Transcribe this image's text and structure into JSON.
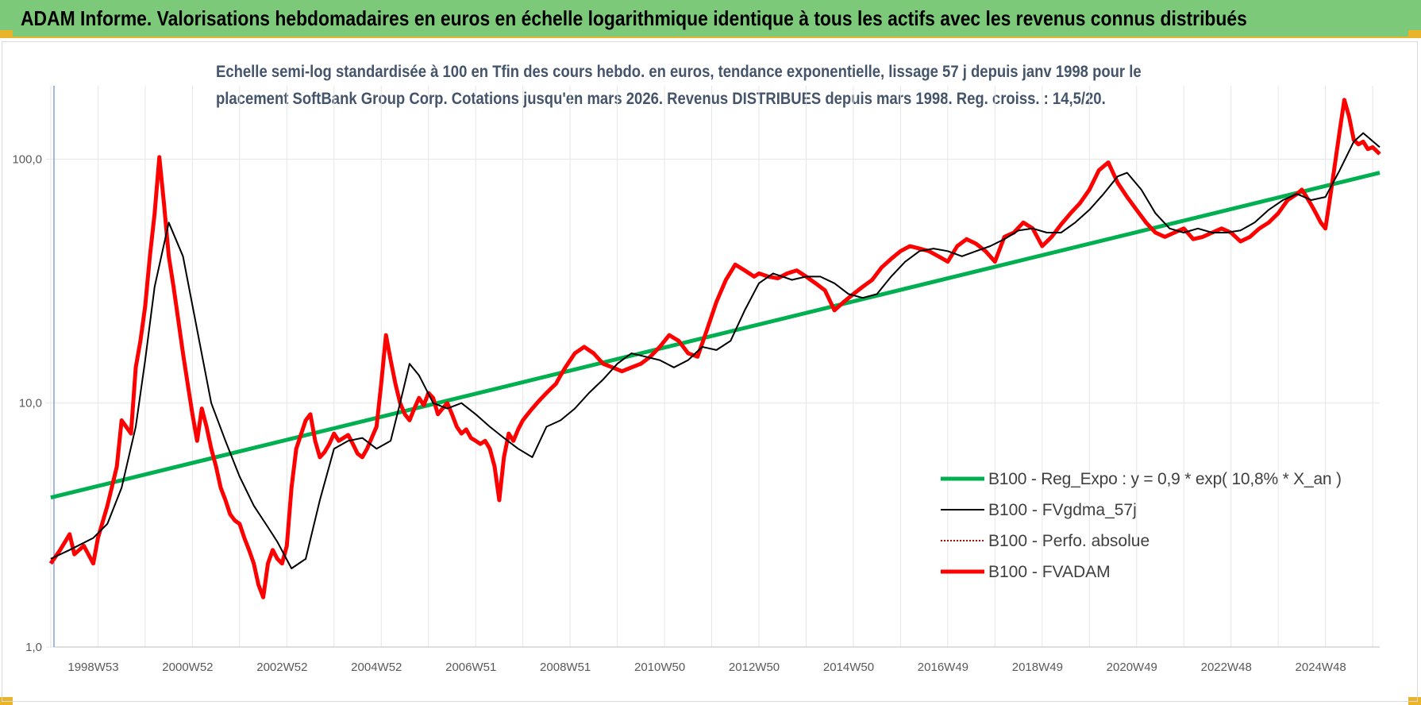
{
  "banner": {
    "title": "ADAM Informe. Valorisations hebdomadaires en euros en échelle logarithmique identique à tous les actifs avec les revenus connus distribués"
  },
  "colors": {
    "banner_bg": "#7cc97a",
    "accent": "#e9b32a",
    "regression": "#00b050",
    "smoothed": "#000000",
    "perfo": "#c00000",
    "fvadam": "#ff0000"
  },
  "chart_data": {
    "type": "line",
    "title_lines": [
      "Echelle semi-log standardisée à 100 en Tfin des cours hebdo. en euros, tendance exponentielle, lissage 57 j depuis janv 1998 pour le",
      "placement SoftBank Group Corp. Cotations jusqu'en mars 2026. Revenus DISTRIBUES depuis mars 1998. Reg. croiss. : 14,5/20."
    ],
    "y_scale": "log",
    "ylim": [
      1,
      200
    ],
    "y_ticks": [
      {
        "value": 1,
        "label": "1,0"
      },
      {
        "value": 10,
        "label": "10,0"
      },
      {
        "value": 100,
        "label": "100,0"
      }
    ],
    "xlim": [
      1998.0,
      2026.25
    ],
    "x_ticks": [
      {
        "value": 1999.0,
        "label": "1998W53"
      },
      {
        "value": 2001.0,
        "label": "2000W52"
      },
      {
        "value": 2003.0,
        "label": "2002W52"
      },
      {
        "value": 2005.0,
        "label": "2004W52"
      },
      {
        "value": 2007.0,
        "label": "2006W51"
      },
      {
        "value": 2009.0,
        "label": "2008W51"
      },
      {
        "value": 2011.0,
        "label": "2010W50"
      },
      {
        "value": 2013.0,
        "label": "2012W50"
      },
      {
        "value": 2015.0,
        "label": "2014W50"
      },
      {
        "value": 2017.0,
        "label": "2016W49"
      },
      {
        "value": 2019.0,
        "label": "2018W49"
      },
      {
        "value": 2021.0,
        "label": "2020W49"
      },
      {
        "value": 2023.0,
        "label": "2022W48"
      },
      {
        "value": 2025.0,
        "label": "2024W48"
      }
    ],
    "grid": "vertical",
    "legend_position": "bottom-right",
    "series": [
      {
        "name": "B100 - Reg_Expo : y = 0,9 * exp( 10,8% *  X_an )",
        "style": "solid-thick",
        "color": "#00b050",
        "x": [
          1998.1,
          2026.25
        ],
        "y": [
          4.1,
          88
        ]
      },
      {
        "name": "B100 - FVgdma_57j",
        "style": "solid-thin",
        "color": "#000000",
        "x": [
          1998.1,
          1998.5,
          1999.0,
          1999.3,
          1999.6,
          1999.9,
          2000.1,
          2000.3,
          2000.6,
          2000.9,
          2001.2,
          2001.5,
          2001.8,
          2002.1,
          2002.4,
          2002.7,
          2002.9,
          2003.2,
          2003.5,
          2003.8,
          2004.1,
          2004.4,
          2004.7,
          2005.0,
          2005.3,
          2005.5,
          2005.7,
          2005.9,
          2006.2,
          2006.5,
          2006.8,
          2007.1,
          2007.4,
          2007.7,
          2008.0,
          2008.3,
          2008.6,
          2008.9,
          2009.2,
          2009.5,
          2009.8,
          2010.1,
          2010.4,
          2010.7,
          2011.0,
          2011.3,
          2011.6,
          2011.9,
          2012.2,
          2012.5,
          2012.8,
          2013.1,
          2013.4,
          2013.6,
          2013.8,
          2014.1,
          2014.4,
          2014.7,
          2015.0,
          2015.3,
          2015.6,
          2015.9,
          2016.2,
          2016.5,
          2016.8,
          2017.1,
          2017.4,
          2017.7,
          2018.0,
          2018.3,
          2018.6,
          2018.9,
          2019.2,
          2019.5,
          2019.8,
          2020.1,
          2020.4,
          2020.7,
          2020.9,
          2021.2,
          2021.5,
          2021.8,
          2022.1,
          2022.4,
          2022.7,
          2023.0,
          2023.3,
          2023.6,
          2023.9,
          2024.2,
          2024.5,
          2024.8,
          2025.1,
          2025.4,
          2025.7,
          2025.9,
          2026.25
        ],
        "y": [
          2.3,
          2.5,
          2.8,
          3.2,
          4.5,
          8.0,
          15.0,
          30.0,
          55.0,
          40.0,
          20.0,
          10.0,
          7.0,
          5.0,
          3.8,
          3.1,
          2.7,
          2.1,
          2.3,
          4.0,
          6.5,
          7.0,
          7.2,
          6.5,
          7.0,
          10.0,
          14.5,
          13.0,
          10.0,
          9.5,
          10.0,
          9.0,
          8.0,
          7.2,
          6.5,
          6.0,
          8.0,
          8.5,
          9.5,
          11.0,
          12.5,
          14.5,
          16.0,
          15.5,
          15.0,
          14.0,
          15.0,
          17.0,
          16.5,
          18.0,
          24.0,
          31.0,
          34.0,
          33.0,
          32.0,
          33.0,
          33.0,
          31.0,
          28.0,
          27.0,
          28.0,
          33.0,
          38.0,
          42.0,
          43.0,
          42.0,
          40.0,
          42.0,
          44.0,
          47.0,
          51.0,
          52.0,
          50.0,
          50.0,
          55.0,
          62.0,
          72.0,
          85.0,
          88.0,
          75.0,
          60.0,
          52.0,
          50.0,
          52.0,
          50.0,
          50.0,
          51.0,
          55.0,
          62.0,
          68.0,
          72.0,
          68.0,
          70.0,
          90.0,
          118.0,
          128.0,
          112.0
        ]
      },
      {
        "name": "B100 - Perfo. absolue",
        "style": "dotted",
        "color": "#c00000",
        "x": [],
        "y": []
      },
      {
        "name": "B100 - FVADAM",
        "style": "solid-thick",
        "color": "#ff0000",
        "x": [
          1998.1,
          1998.3,
          1998.5,
          1998.6,
          1998.8,
          1999.0,
          1999.1,
          1999.3,
          1999.5,
          1999.6,
          1999.8,
          1999.9,
          2000.0,
          2000.1,
          2000.2,
          2000.3,
          2000.4,
          2000.5,
          2000.6,
          2000.7,
          2000.8,
          2000.9,
          2001.0,
          2001.1,
          2001.2,
          2001.3,
          2001.4,
          2001.5,
          2001.6,
          2001.7,
          2001.8,
          2001.9,
          2002.0,
          2002.1,
          2002.2,
          2002.3,
          2002.4,
          2002.5,
          2002.6,
          2002.7,
          2002.8,
          2002.9,
          2003.0,
          2003.1,
          2003.2,
          2003.3,
          2003.5,
          2003.6,
          2003.7,
          2003.8,
          2003.9,
          2004.0,
          2004.1,
          2004.2,
          2004.3,
          2004.4,
          2004.5,
          2004.6,
          2004.7,
          2004.8,
          2005.0,
          2005.1,
          2005.2,
          2005.3,
          2005.4,
          2005.5,
          2005.6,
          2005.7,
          2005.8,
          2005.9,
          2006.0,
          2006.1,
          2006.2,
          2006.3,
          2006.4,
          2006.5,
          2006.6,
          2006.7,
          2006.8,
          2006.9,
          2007.0,
          2007.1,
          2007.2,
          2007.3,
          2007.4,
          2007.5,
          2007.6,
          2007.7,
          2007.8,
          2007.9,
          2008.0,
          2008.1,
          2008.2,
          2008.3,
          2008.4,
          2008.5,
          2008.6,
          2008.7,
          2008.8,
          2008.9,
          2009.0,
          2009.2,
          2009.4,
          2009.6,
          2009.8,
          2010.0,
          2010.2,
          2010.4,
          2010.6,
          2010.8,
          2011.0,
          2011.2,
          2011.4,
          2011.6,
          2011.8,
          2012.0,
          2012.2,
          2012.4,
          2012.6,
          2012.8,
          2013.0,
          2013.1,
          2013.3,
          2013.5,
          2013.7,
          2013.9,
          2014.1,
          2014.3,
          2014.5,
          2014.7,
          2014.9,
          2015.1,
          2015.3,
          2015.5,
          2015.7,
          2015.9,
          2016.1,
          2016.3,
          2016.5,
          2016.7,
          2016.9,
          2017.1,
          2017.3,
          2017.5,
          2017.7,
          2017.9,
          2018.1,
          2018.3,
          2018.5,
          2018.7,
          2018.9,
          2019.1,
          2019.3,
          2019.5,
          2019.7,
          2019.9,
          2020.1,
          2020.3,
          2020.5,
          2020.7,
          2020.9,
          2021.1,
          2021.3,
          2021.5,
          2021.7,
          2021.9,
          2022.1,
          2022.3,
          2022.5,
          2022.7,
          2022.9,
          2023.1,
          2023.3,
          2023.5,
          2023.7,
          2023.9,
          2024.1,
          2024.3,
          2024.5,
          2024.6,
          2024.7,
          2024.8,
          2024.9,
          2025.0,
          2025.1,
          2025.2,
          2025.3,
          2025.4,
          2025.5,
          2025.6,
          2025.7,
          2025.8,
          2025.9,
          2026.0,
          2026.1,
          2026.25
        ],
        "y": [
          2.2,
          2.5,
          2.9,
          2.4,
          2.6,
          2.2,
          2.8,
          3.8,
          5.5,
          8.5,
          7.5,
          14.0,
          18.0,
          25.0,
          40.0,
          60.0,
          102.0,
          65.0,
          40.0,
          30.0,
          22.0,
          16.0,
          12.0,
          9.0,
          7.0,
          9.5,
          8.0,
          6.5,
          5.5,
          4.5,
          4.0,
          3.5,
          3.3,
          3.2,
          2.8,
          2.5,
          2.2,
          1.8,
          1.6,
          2.2,
          2.5,
          2.3,
          2.2,
          2.6,
          4.5,
          6.5,
          8.5,
          9.0,
          7.0,
          6.0,
          6.3,
          6.8,
          7.5,
          7.0,
          7.2,
          7.4,
          6.8,
          6.2,
          6.0,
          6.5,
          8.0,
          12.0,
          19.0,
          15.0,
          12.0,
          10.0,
          9.0,
          8.5,
          9.5,
          10.5,
          9.8,
          11.0,
          10.5,
          9.0,
          9.5,
          10.0,
          9.0,
          8.0,
          7.5,
          7.8,
          7.2,
          7.0,
          6.8,
          7.0,
          6.5,
          5.5,
          4.0,
          6.0,
          7.5,
          7.0,
          7.8,
          8.5,
          9.0,
          9.5,
          10.0,
          10.5,
          11.0,
          11.5,
          12.0,
          13.0,
          14.0,
          16.0,
          17.0,
          16.0,
          14.5,
          14.0,
          13.5,
          14.0,
          14.5,
          15.5,
          17.0,
          19.0,
          18.0,
          16.0,
          15.5,
          20.0,
          26.0,
          32.0,
          37.0,
          35.0,
          33.0,
          34.0,
          33.0,
          32.5,
          34.0,
          35.0,
          33.0,
          31.0,
          29.0,
          24.0,
          26.0,
          28.0,
          30.0,
          32.0,
          36.0,
          39.0,
          42.0,
          44.0,
          43.0,
          42.0,
          40.0,
          38.0,
          44.0,
          47.0,
          45.0,
          42.0,
          38.0,
          48.0,
          50.0,
          55.0,
          52.0,
          44.0,
          48.0,
          54.0,
          60.0,
          66.0,
          75.0,
          90.0,
          97.0,
          80.0,
          70.0,
          62.0,
          55.0,
          50.0,
          48.0,
          50.0,
          52.0,
          47.0,
          48.0,
          50.0,
          52.0,
          50.0,
          46.0,
          48.0,
          52.0,
          55.0,
          60.0,
          68.0,
          72.0,
          75.0,
          70.0,
          65.0,
          60.0,
          55.0,
          52.0,
          70.0,
          95.0,
          130.0,
          175.0,
          150.0,
          120.0,
          115.0,
          118.0,
          110.0,
          112.0,
          105.0
        ]
      }
    ]
  }
}
